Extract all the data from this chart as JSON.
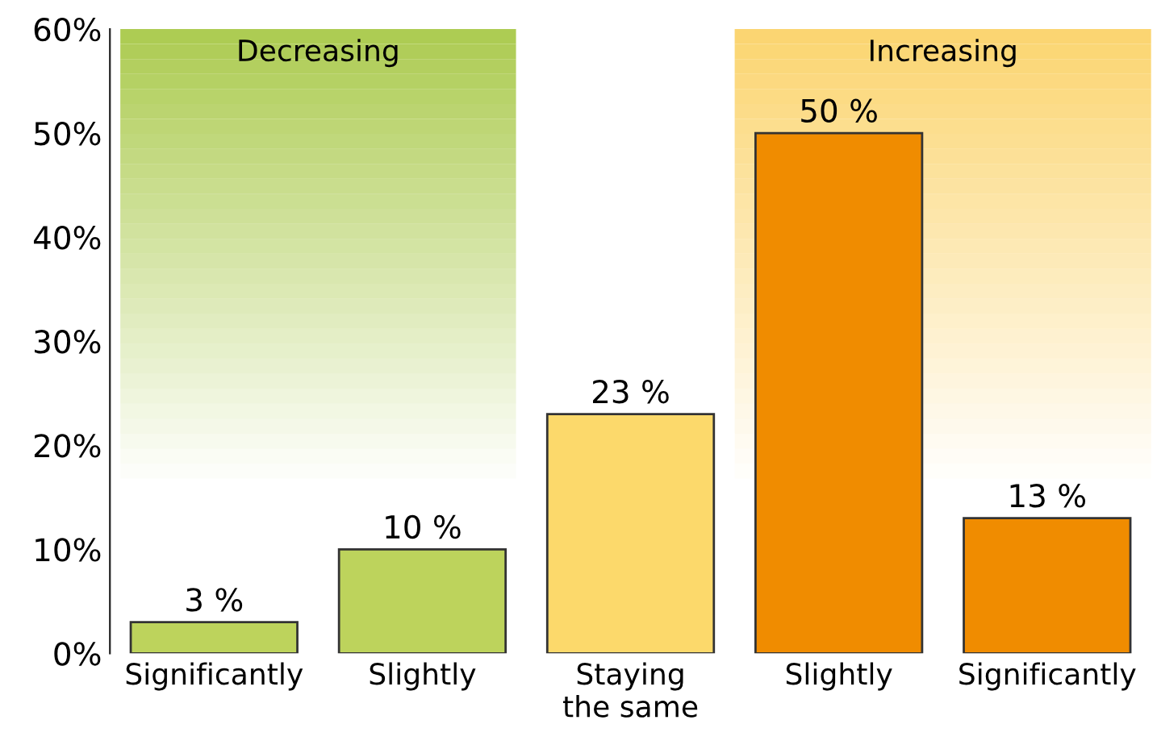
{
  "chart_data": {
    "type": "bar",
    "categories": [
      "Significantly",
      "Slightly",
      "Staying\nthe same",
      "Slightly",
      "Significantly"
    ],
    "values": [
      3,
      10,
      23,
      50,
      13
    ],
    "colors": [
      "#bdd35c",
      "#bdd35c",
      "#fcd96b",
      "#f08c00",
      "#f08c00"
    ],
    "value_labels": [
      "3 %",
      "10 %",
      "23 %",
      "50 %",
      "13 %"
    ],
    "annotations": [
      "Decreasing",
      "Increasing"
    ],
    "ylim": [
      0,
      60
    ],
    "yticks": [
      {
        "value": 0,
        "label": "0%"
      },
      {
        "value": 10,
        "label": "10%"
      },
      {
        "value": 20,
        "label": "20%"
      },
      {
        "value": 30,
        "label": "30%"
      },
      {
        "value": 40,
        "label": "40%"
      },
      {
        "value": 50,
        "label": "50%"
      },
      {
        "value": 60,
        "label": "60%"
      }
    ],
    "grid": false
  }
}
